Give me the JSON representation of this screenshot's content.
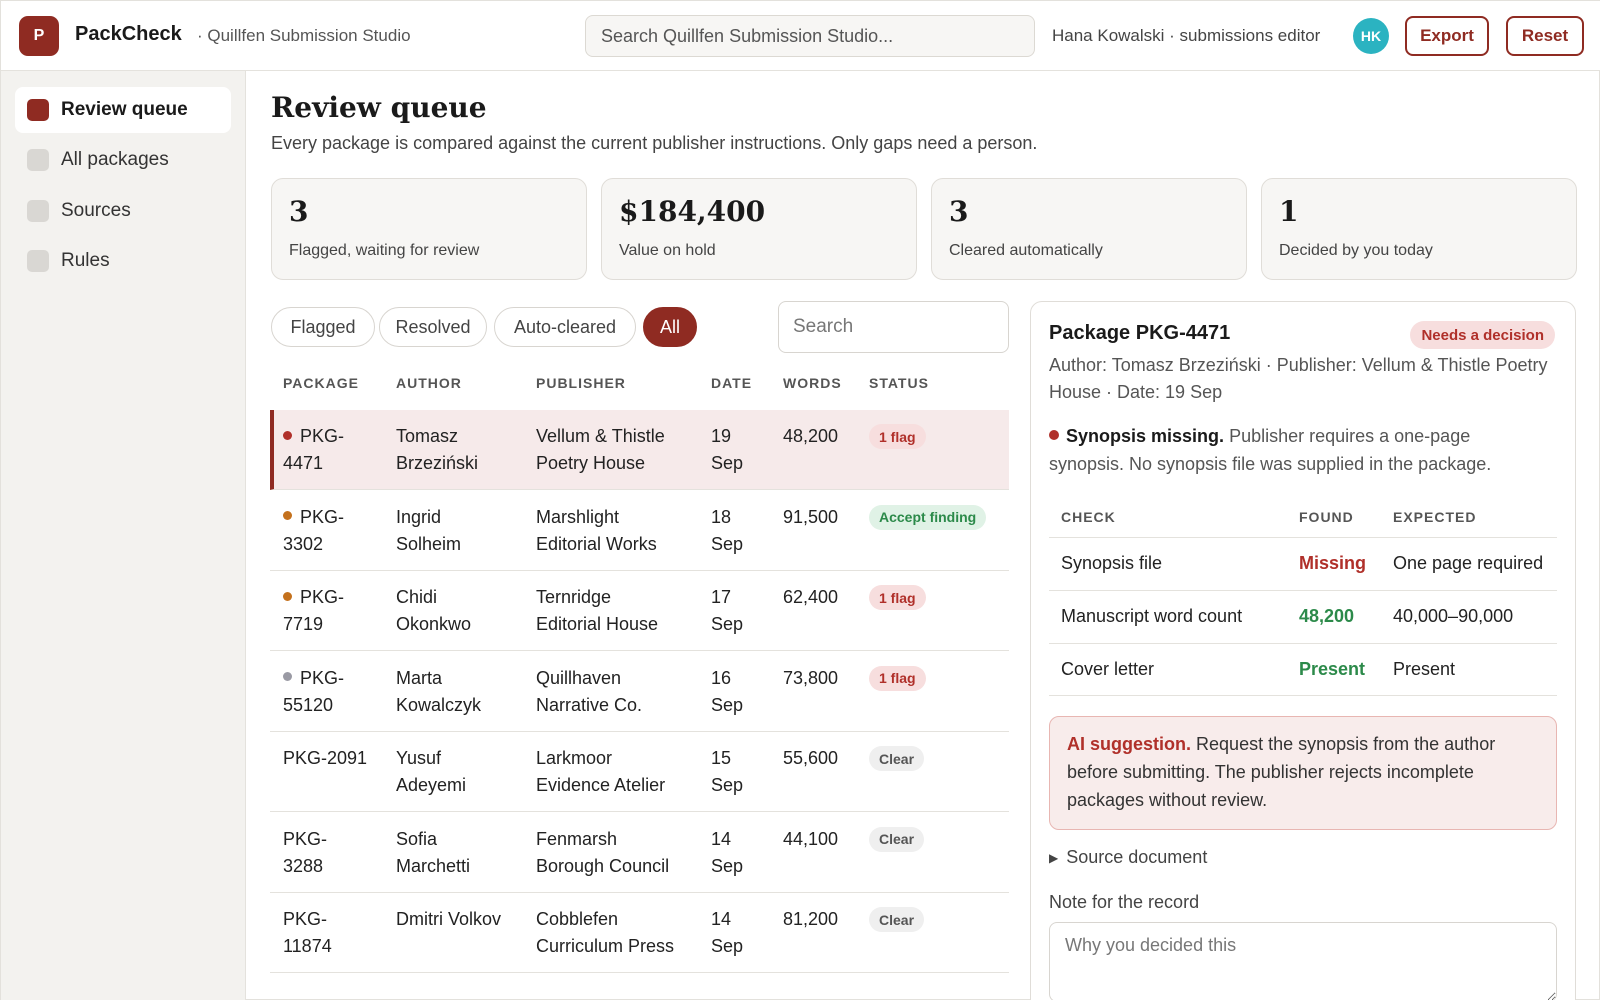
{
  "app": {
    "logo_letter": "P",
    "name": "PackCheck",
    "studio": "· Quillfen Submission Studio",
    "search_placeholder": "Search Quillfen Submission Studio...",
    "user_label": "Hana Kowalski · submissions editor",
    "avatar_initials": "HK",
    "export_label": "Export",
    "reset_label": "Reset"
  },
  "sidebar": {
    "items": [
      {
        "label": "Review queue",
        "active": true
      },
      {
        "label": "All packages",
        "active": false
      },
      {
        "label": "Sources",
        "active": false
      },
      {
        "label": "Rules",
        "active": false
      }
    ]
  },
  "main": {
    "title": "Review queue",
    "subtitle": "Every package is compared against the current publisher instructions. Only gaps need a person.",
    "stats": [
      {
        "value": "3",
        "label": "Flagged, waiting for review"
      },
      {
        "value": "$184,400",
        "label": "Value on hold"
      },
      {
        "value": "3",
        "label": "Cleared automatically"
      },
      {
        "value": "1",
        "label": "Decided by you today"
      }
    ],
    "filters": [
      "Flagged",
      "Resolved",
      "Auto-cleared",
      "All"
    ],
    "active_filter": "All",
    "search_placeholder": "Search"
  },
  "table": {
    "headers": [
      "PACKAGE",
      "AUTHOR",
      "PUBLISHER",
      "DATE",
      "WORDS",
      "STATUS"
    ],
    "rows": [
      {
        "pkg": [
          "PKG-",
          "4471"
        ],
        "dot": "#b0302a",
        "author": [
          "Tomasz",
          "Brzeziński"
        ],
        "publisher": [
          "Vellum & Thistle",
          "Poetry House"
        ],
        "date": [
          "19",
          "Sep"
        ],
        "words": "48,200",
        "status": "1 flag",
        "status_kind": "flag",
        "selected": true
      },
      {
        "pkg": [
          "PKG-",
          "3302"
        ],
        "dot": "#c4711d",
        "author": [
          "Ingrid",
          "Solheim"
        ],
        "publisher": [
          "Marshlight",
          "Editorial Works"
        ],
        "date": [
          "18",
          "Sep"
        ],
        "words": "91,500",
        "status": "Accept finding",
        "status_kind": "accept",
        "selected": false
      },
      {
        "pkg": [
          "PKG-",
          "7719"
        ],
        "dot": "#c4711d",
        "author": [
          "Chidi",
          "Okonkwo"
        ],
        "publisher": [
          "Ternridge",
          "Editorial House"
        ],
        "date": [
          "17",
          "Sep"
        ],
        "words": "62,400",
        "status": "1 flag",
        "status_kind": "flag",
        "selected": false
      },
      {
        "pkg": [
          "PKG-",
          "55120"
        ],
        "dot": "#9a9aa4",
        "author": [
          "Marta",
          "Kowalczyk"
        ],
        "publisher": [
          "Quillhaven",
          "Narrative Co."
        ],
        "date": [
          "16",
          "Sep"
        ],
        "words": "73,800",
        "status": "1 flag",
        "status_kind": "flag",
        "selected": false
      },
      {
        "pkg": [
          "PKG-2091",
          ""
        ],
        "dot": "",
        "author": [
          "Yusuf",
          "Adeyemi"
        ],
        "publisher": [
          "Larkmoor",
          "Evidence Atelier"
        ],
        "date": [
          "15",
          "Sep"
        ],
        "words": "55,600",
        "status": "Clear",
        "status_kind": "clear",
        "selected": false
      },
      {
        "pkg": [
          "PKG-",
          "3288"
        ],
        "dot": "",
        "author": [
          "Sofia",
          "Marchetti"
        ],
        "publisher": [
          "Fenmarsh",
          "Borough Council"
        ],
        "date": [
          "14",
          "Sep"
        ],
        "words": "44,100",
        "status": "Clear",
        "status_kind": "clear",
        "selected": false
      },
      {
        "pkg": [
          "PKG-",
          "11874"
        ],
        "dot": "",
        "author": [
          "Dmitri Volkov",
          ""
        ],
        "publisher": [
          "Cobblefen",
          "Curriculum Press"
        ],
        "date": [
          "14",
          "Sep"
        ],
        "words": "81,200",
        "status": "Clear",
        "status_kind": "clear",
        "selected": false
      }
    ]
  },
  "detail": {
    "title": "Package PKG-4471",
    "badge": "Needs a decision",
    "meta": "Author: Tomasz Brzeziński · Publisher: Vellum & Thistle Poetry House · Date: 19 Sep",
    "finding_title": "Synopsis missing.",
    "finding_text": "Publisher requires a one-page synopsis. No synopsis file was supplied in the package.",
    "check_headers": [
      "CHECK",
      "FOUND",
      "EXPECTED"
    ],
    "checks": [
      {
        "check": "Synopsis file",
        "found": "Missing",
        "expected": "One page required",
        "ok": false
      },
      {
        "check": "Manuscript word count",
        "found": "48,200",
        "expected": "40,000–90,000",
        "ok": true
      },
      {
        "check": "Cover letter",
        "found": "Present",
        "expected": "Present",
        "ok": true
      }
    ],
    "ai_title": "AI suggestion.",
    "ai_text": "Request the synopsis from the author before submitting. The publisher rejects incomplete packages without review.",
    "source_label": "Source document",
    "note_label": "Note for the record",
    "note_placeholder": "Why you decided this"
  },
  "colors": {
    "brand": "#8f2b22",
    "flag": "#b0302a",
    "ok": "#2c8a4a",
    "avatar": "#2bb3c1"
  }
}
